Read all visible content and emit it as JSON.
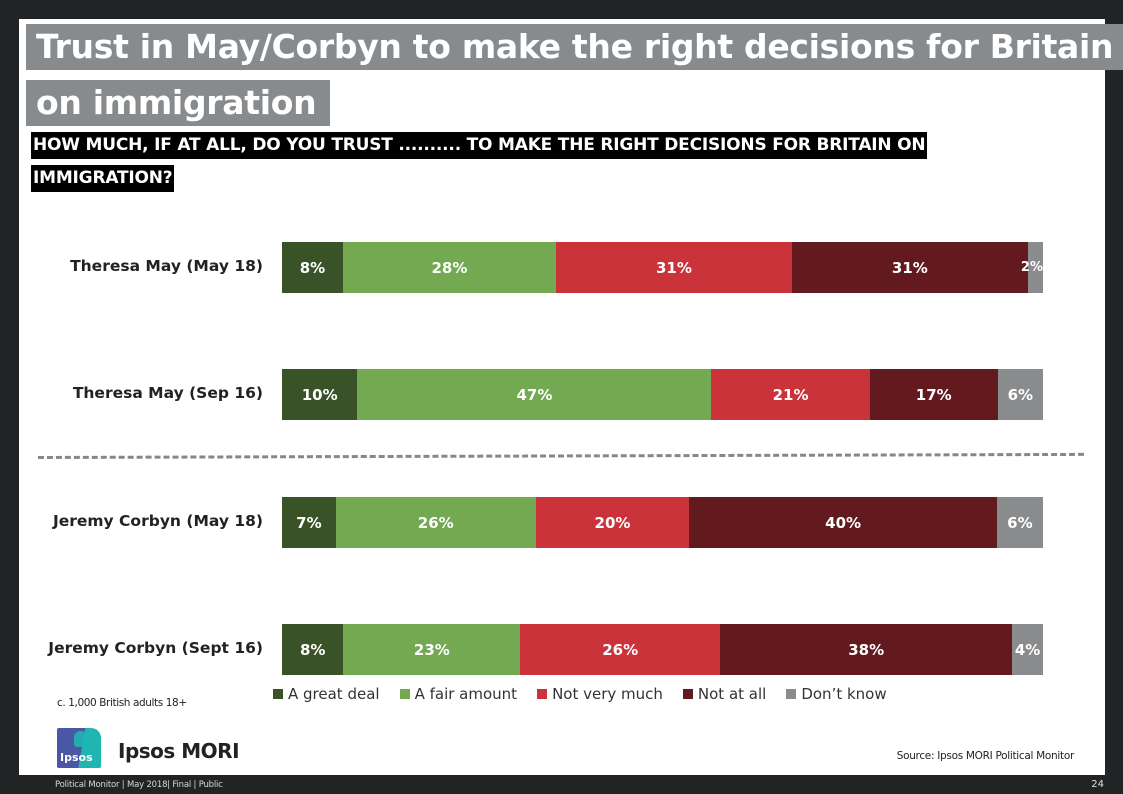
{
  "slide": {
    "title_line1": "Trust in May/Corbyn to make the right decisions for Britain",
    "title_line2": "on immigration",
    "question_line1": "HOW MUCH, IF AT ALL, DO YOU TRUST .......... TO MAKE THE RIGHT DECISIONS FOR BRITAIN ON",
    "question_line2": "IMMIGRATION?",
    "sample_note": "c. 1,000 British adults 18+",
    "brand_logo_text": "Ipsos",
    "brand_name": "Ipsos MORI",
    "source": "Source: Ipsos MORI Political Monitor",
    "footer": "Political Monitor | May 2018| Final | Public",
    "page_number": "24"
  },
  "colors": {
    "a_great_deal": "#3a5228",
    "a_fair_amount": "#72a951",
    "not_very_much": "#cb333b",
    "not_at_all": "#621a1f",
    "dont_know": "#898b8d",
    "title_bg": "#888b8d",
    "question_bg": "#000000",
    "frame_bg": "#222324"
  },
  "legend": [
    {
      "key": "a_great_deal",
      "label": "A great deal"
    },
    {
      "key": "a_fair_amount",
      "label": "A fair amount"
    },
    {
      "key": "not_very_much",
      "label": "Not very much"
    },
    {
      "key": "not_at_all",
      "label": "Not at all"
    },
    {
      "key": "dont_know",
      "label": "Don’t know"
    }
  ],
  "chart_data": {
    "type": "bar",
    "orientation": "horizontal",
    "stacked": true,
    "title": "Trust in May/Corbyn to make the right decisions for Britain on immigration",
    "subtitle": "HOW MUCH, IF AT ALL, DO YOU TRUST .......... TO MAKE THE RIGHT DECISIONS FOR BRITAIN ON IMMIGRATION?",
    "categories": [
      "Theresa May (May 18)",
      "Theresa May (Sep 16)",
      "Jeremy Corbyn (May 18)",
      "Jeremy Corbyn (Sept 16)"
    ],
    "series": [
      {
        "name": "A great deal",
        "values": [
          8,
          10,
          7,
          8
        ]
      },
      {
        "name": "A fair amount",
        "values": [
          28,
          47,
          26,
          23
        ]
      },
      {
        "name": "Not very much",
        "values": [
          31,
          21,
          20,
          26
        ]
      },
      {
        "name": "Not at all",
        "values": [
          31,
          17,
          40,
          38
        ]
      },
      {
        "name": "Don’t know",
        "values": [
          2,
          6,
          6,
          4
        ]
      }
    ],
    "value_labels": [
      [
        "8%",
        "28%",
        "31%",
        "31%",
        "2%"
      ],
      [
        "10%",
        "47%",
        "21%",
        "17%",
        "6%"
      ],
      [
        "7%",
        "26%",
        "20%",
        "40%",
        "6%"
      ],
      [
        "8%",
        "23%",
        "26%",
        "38%",
        "4%"
      ]
    ],
    "xlabel": "",
    "ylabel": "",
    "unit": "%",
    "grid": false,
    "legend_position": "bottom",
    "separator": "dashed line between Theresa May and Jeremy Corbyn rows"
  }
}
